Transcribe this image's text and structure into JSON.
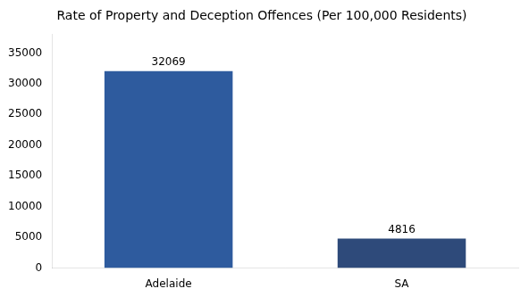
{
  "chart_data": {
    "type": "bar",
    "title": "Rate of Property and Deception Offences (Per 100,000 Residents)",
    "categories": [
      "Adelaide",
      "SA"
    ],
    "values": [
      32069,
      4816
    ],
    "colors": [
      "#2e5b9e",
      "#2e4a7a"
    ],
    "ylim": [
      0,
      38000
    ],
    "yticks": [
      0,
      5000,
      10000,
      15000,
      20000,
      25000,
      30000,
      35000
    ],
    "grid": false,
    "data_labels": true
  }
}
